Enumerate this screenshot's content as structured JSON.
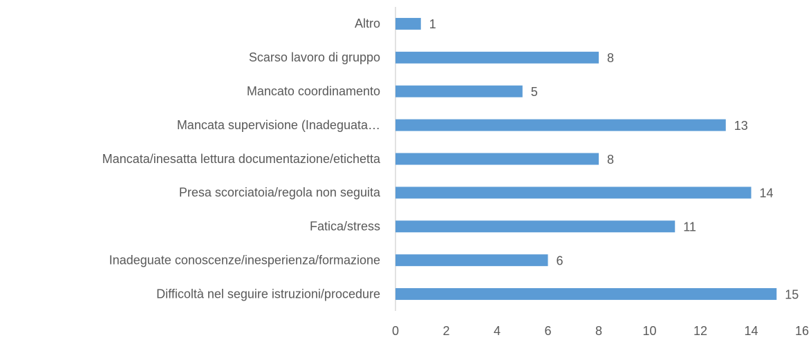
{
  "chart_data": {
    "type": "bar",
    "orientation": "horizontal",
    "categories": [
      "Altro",
      "Scarso lavoro di gruppo",
      "Mancato coordinamento",
      "Mancata supervisione (Inadeguata…",
      "Mancata/inesatta lettura documentazione/etichetta",
      "Presa scorciatoia/regola non seguita",
      "Fatica/stress",
      "Inadeguate conoscenze/inesperienza/formazione",
      "Difficoltà nel seguire istruzioni/procedure"
    ],
    "values": [
      1,
      8,
      5,
      13,
      8,
      14,
      11,
      6,
      15
    ],
    "color": "#5b9bd5",
    "xlim": [
      0,
      16
    ],
    "xticks": [
      0,
      2,
      4,
      6,
      8,
      10,
      12,
      14,
      16
    ],
    "grid": false
  }
}
